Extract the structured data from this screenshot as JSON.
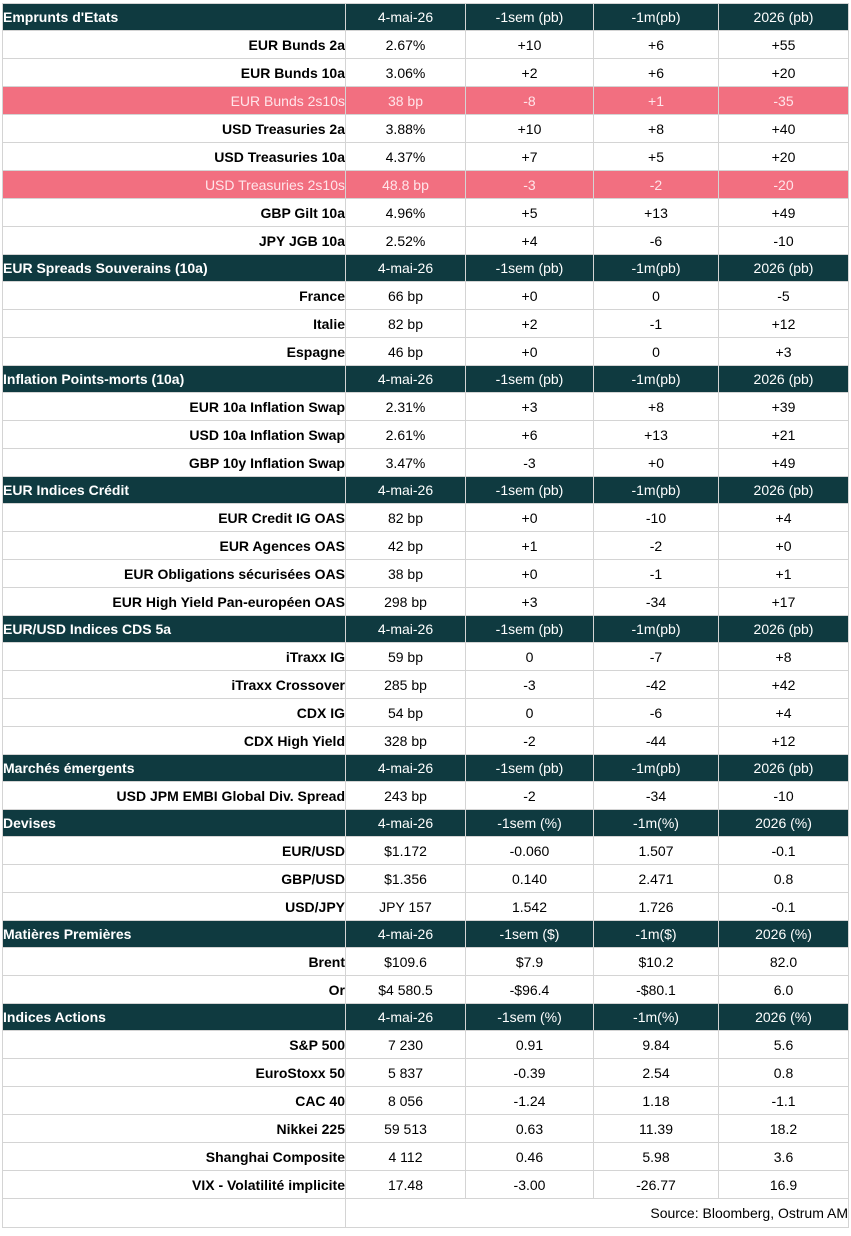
{
  "sections": [
    {
      "title": "Emprunts d'Etats",
      "columns": [
        "4-mai-26",
        "-1sem (pb)",
        "-1m(pb)",
        "2026 (pb)"
      ],
      "rows": [
        {
          "label": "EUR Bunds 2a",
          "values": [
            "2.67%",
            "+10",
            "+6",
            "+55"
          ]
        },
        {
          "label": "EUR Bunds 10a",
          "values": [
            "3.06%",
            "+2",
            "+6",
            "+20"
          ]
        },
        {
          "label": "EUR Bunds 2s10s",
          "values": [
            "38 bp",
            "-8",
            "+1",
            "-35"
          ],
          "highlight": true
        },
        {
          "label": "USD Treasuries 2a",
          "values": [
            "3.88%",
            "+10",
            "+8",
            "+40"
          ]
        },
        {
          "label": "USD Treasuries 10a",
          "values": [
            "4.37%",
            "+7",
            "+5",
            "+20"
          ]
        },
        {
          "label": "USD Treasuries 2s10s",
          "values": [
            "48.8 bp",
            "-3",
            "-2",
            "-20"
          ],
          "highlight": true
        },
        {
          "label": "GBP Gilt 10a",
          "values": [
            "4.96%",
            "+5",
            "+13",
            "+49"
          ]
        },
        {
          "label": "JPY JGB  10a",
          "values": [
            "2.52%",
            "+4",
            "-6",
            "-10"
          ]
        }
      ]
    },
    {
      "title": "EUR Spreads Souverains (10a)",
      "columns": [
        "4-mai-26",
        "-1sem (pb)",
        "-1m(pb)",
        "2026 (pb)"
      ],
      "rows": [
        {
          "label": "France",
          "values": [
            "66 bp",
            "+0",
            "0",
            "-5"
          ]
        },
        {
          "label": "Italie",
          "values": [
            "82 bp",
            "+2",
            "-1",
            "+12"
          ]
        },
        {
          "label": "Espagne",
          "values": [
            "46 bp",
            "+0",
            "0",
            "+3"
          ]
        }
      ]
    },
    {
      "title": " Inflation Points-morts (10a)",
      "columns": [
        "4-mai-26",
        "-1sem (pb)",
        "-1m(pb)",
        "2026 (pb)"
      ],
      "rows": [
        {
          "label": "EUR 10a Inflation Swap",
          "values": [
            "2.31%",
            "+3",
            "+8",
            "+39"
          ]
        },
        {
          "label": "USD 10a Inflation Swap",
          "values": [
            "2.61%",
            "+6",
            "+13",
            "+21"
          ]
        },
        {
          "label": "GBP 10y Inflation Swap",
          "values": [
            "3.47%",
            "-3",
            "+0",
            "+49"
          ]
        }
      ]
    },
    {
      "title": "EUR Indices Crédit",
      "columns": [
        "4-mai-26",
        "-1sem (pb)",
        "-1m(pb)",
        "2026 (pb)"
      ],
      "rows": [
        {
          "label": "EUR Credit IG OAS",
          "values": [
            "82 bp",
            "+0",
            "-10",
            "+4"
          ]
        },
        {
          "label": "EUR Agences OAS",
          "values": [
            "42 bp",
            "+1",
            "-2",
            "+0"
          ]
        },
        {
          "label": "EUR Obligations sécurisées OAS",
          "values": [
            "38 bp",
            "+0",
            "-1",
            "+1"
          ]
        },
        {
          "label": "EUR High Yield Pan-européen OAS",
          "values": [
            "298 bp",
            "+3",
            "-34",
            "+17"
          ]
        }
      ]
    },
    {
      "title": "EUR/USD Indices CDS 5a",
      "columns": [
        "4-mai-26",
        "-1sem (pb)",
        "-1m(pb)",
        "2026 (pb)"
      ],
      "rows": [
        {
          "label": "iTraxx IG",
          "values": [
            "59 bp",
            "0",
            "-7",
            "+8"
          ]
        },
        {
          "label": "iTraxx Crossover ",
          "values": [
            "285 bp",
            "-3",
            "-42",
            "+42"
          ]
        },
        {
          "label": "CDX IG",
          "values": [
            "54 bp",
            "0",
            "-6",
            "+4"
          ]
        },
        {
          "label": "CDX High Yield",
          "values": [
            "328 bp",
            "-2",
            "-44",
            "+12"
          ]
        }
      ]
    },
    {
      "title": "Marchés émergents",
      "columns": [
        "4-mai-26",
        "-1sem (pb)",
        "-1m(pb)",
        "2026 (pb)"
      ],
      "rows": [
        {
          "label": "USD JPM EMBI Global Div. Spread",
          "values": [
            "243 bp",
            "-2",
            "-34",
            "-10"
          ]
        }
      ]
    },
    {
      "title": "Devises",
      "columns": [
        "4-mai-26",
        "-1sem (%)",
        "-1m(%)",
        "2026 (%)"
      ],
      "rows": [
        {
          "label": "EUR/USD",
          "values": [
            "$1.172",
            "-0.060",
            "1.507",
            "-0.1"
          ]
        },
        {
          "label": "GBP/USD",
          "values": [
            "$1.356",
            "0.140",
            "2.471",
            "0.8"
          ]
        },
        {
          "label": "USD/JPY",
          "values": [
            "JPY 157",
            "1.542",
            "1.726",
            "-0.1"
          ]
        }
      ]
    },
    {
      "title": "Matières Premières",
      "columns": [
        "4-mai-26",
        "-1sem ($)",
        "-1m($)",
        "2026 (%)"
      ],
      "rows": [
        {
          "label": "Brent",
          "values": [
            "$109.6",
            "$7.9",
            "$10.2",
            "82.0"
          ]
        },
        {
          "label": "Or",
          "values": [
            "$4 580.5",
            "-$96.4",
            "-$80.1",
            "6.0"
          ]
        }
      ]
    },
    {
      "title": "Indices Actions",
      "columns": [
        "4-mai-26",
        "-1sem (%)",
        "-1m(%)",
        "2026 (%)"
      ],
      "rows": [
        {
          "label": "S&P 500",
          "values": [
            "7 230",
            "0.91",
            "9.84",
            "5.6"
          ]
        },
        {
          "label": "EuroStoxx 50",
          "values": [
            "5 837",
            "-0.39",
            "2.54",
            "0.8"
          ]
        },
        {
          "label": "CAC 40",
          "values": [
            "8 056",
            "-1.24",
            "1.18",
            "-1.1"
          ]
        },
        {
          "label": "Nikkei 225",
          "values": [
            "59 513",
            "0.63",
            "11.39",
            "18.2"
          ]
        },
        {
          "label": "Shanghai Composite",
          "values": [
            "4 112",
            "0.46",
            "5.98",
            "3.6"
          ]
        },
        {
          "label": "VIX - Volatilité implicite",
          "values": [
            "17.48",
            "-3.00",
            "-26.77",
            "16.9"
          ]
        }
      ]
    }
  ],
  "source": "Source: Bloomberg, Ostrum AM",
  "colors": {
    "header_bg": "#0f3a40",
    "header_text": "#ffffff",
    "highlight_bg": "#f26f80",
    "highlight_text": "#ffe5ea"
  }
}
